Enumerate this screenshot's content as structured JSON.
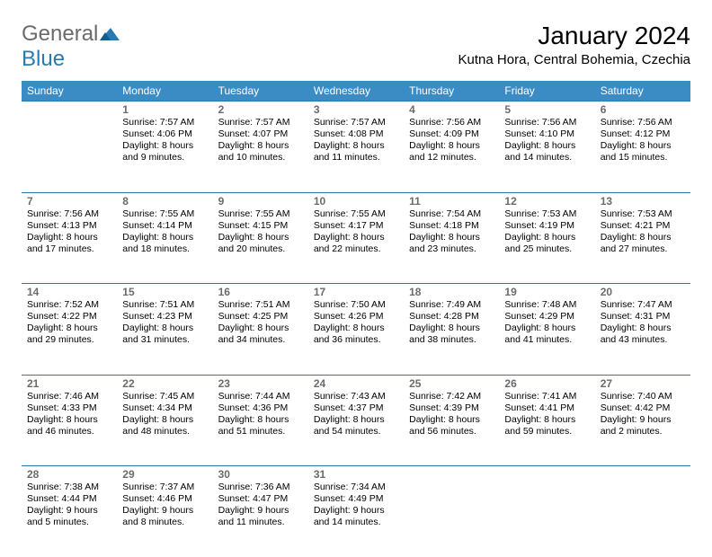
{
  "logo": {
    "word1": "General",
    "word2": "Blue"
  },
  "title": "January 2024",
  "location": "Kutna Hora, Central Bohemia, Czechia",
  "colors": {
    "header_bg": "#3b8bc5",
    "row_divider": "#2a7ab0",
    "daynum": "#6b6b6b",
    "logo_gray": "#6b6b6b",
    "logo_blue": "#2a7ab0",
    "text": "#000000",
    "bg": "#ffffff"
  },
  "weekdays": [
    "Sunday",
    "Monday",
    "Tuesday",
    "Wednesday",
    "Thursday",
    "Friday",
    "Saturday"
  ],
  "weeks": [
    {
      "days": [
        null,
        {
          "n": "1",
          "sunrise": "Sunrise: 7:57 AM",
          "sunset": "Sunset: 4:06 PM",
          "day1": "Daylight: 8 hours",
          "day2": "and 9 minutes."
        },
        {
          "n": "2",
          "sunrise": "Sunrise: 7:57 AM",
          "sunset": "Sunset: 4:07 PM",
          "day1": "Daylight: 8 hours",
          "day2": "and 10 minutes."
        },
        {
          "n": "3",
          "sunrise": "Sunrise: 7:57 AM",
          "sunset": "Sunset: 4:08 PM",
          "day1": "Daylight: 8 hours",
          "day2": "and 11 minutes."
        },
        {
          "n": "4",
          "sunrise": "Sunrise: 7:56 AM",
          "sunset": "Sunset: 4:09 PM",
          "day1": "Daylight: 8 hours",
          "day2": "and 12 minutes."
        },
        {
          "n": "5",
          "sunrise": "Sunrise: 7:56 AM",
          "sunset": "Sunset: 4:10 PM",
          "day1": "Daylight: 8 hours",
          "day2": "and 14 minutes."
        },
        {
          "n": "6",
          "sunrise": "Sunrise: 7:56 AM",
          "sunset": "Sunset: 4:12 PM",
          "day1": "Daylight: 8 hours",
          "day2": "and 15 minutes."
        }
      ]
    },
    {
      "days": [
        {
          "n": "7",
          "sunrise": "Sunrise: 7:56 AM",
          "sunset": "Sunset: 4:13 PM",
          "day1": "Daylight: 8 hours",
          "day2": "and 17 minutes."
        },
        {
          "n": "8",
          "sunrise": "Sunrise: 7:55 AM",
          "sunset": "Sunset: 4:14 PM",
          "day1": "Daylight: 8 hours",
          "day2": "and 18 minutes."
        },
        {
          "n": "9",
          "sunrise": "Sunrise: 7:55 AM",
          "sunset": "Sunset: 4:15 PM",
          "day1": "Daylight: 8 hours",
          "day2": "and 20 minutes."
        },
        {
          "n": "10",
          "sunrise": "Sunrise: 7:55 AM",
          "sunset": "Sunset: 4:17 PM",
          "day1": "Daylight: 8 hours",
          "day2": "and 22 minutes."
        },
        {
          "n": "11",
          "sunrise": "Sunrise: 7:54 AM",
          "sunset": "Sunset: 4:18 PM",
          "day1": "Daylight: 8 hours",
          "day2": "and 23 minutes."
        },
        {
          "n": "12",
          "sunrise": "Sunrise: 7:53 AM",
          "sunset": "Sunset: 4:19 PM",
          "day1": "Daylight: 8 hours",
          "day2": "and 25 minutes."
        },
        {
          "n": "13",
          "sunrise": "Sunrise: 7:53 AM",
          "sunset": "Sunset: 4:21 PM",
          "day1": "Daylight: 8 hours",
          "day2": "and 27 minutes."
        }
      ]
    },
    {
      "days": [
        {
          "n": "14",
          "sunrise": "Sunrise: 7:52 AM",
          "sunset": "Sunset: 4:22 PM",
          "day1": "Daylight: 8 hours",
          "day2": "and 29 minutes."
        },
        {
          "n": "15",
          "sunrise": "Sunrise: 7:51 AM",
          "sunset": "Sunset: 4:23 PM",
          "day1": "Daylight: 8 hours",
          "day2": "and 31 minutes."
        },
        {
          "n": "16",
          "sunrise": "Sunrise: 7:51 AM",
          "sunset": "Sunset: 4:25 PM",
          "day1": "Daylight: 8 hours",
          "day2": "and 34 minutes."
        },
        {
          "n": "17",
          "sunrise": "Sunrise: 7:50 AM",
          "sunset": "Sunset: 4:26 PM",
          "day1": "Daylight: 8 hours",
          "day2": "and 36 minutes."
        },
        {
          "n": "18",
          "sunrise": "Sunrise: 7:49 AM",
          "sunset": "Sunset: 4:28 PM",
          "day1": "Daylight: 8 hours",
          "day2": "and 38 minutes."
        },
        {
          "n": "19",
          "sunrise": "Sunrise: 7:48 AM",
          "sunset": "Sunset: 4:29 PM",
          "day1": "Daylight: 8 hours",
          "day2": "and 41 minutes."
        },
        {
          "n": "20",
          "sunrise": "Sunrise: 7:47 AM",
          "sunset": "Sunset: 4:31 PM",
          "day1": "Daylight: 8 hours",
          "day2": "and 43 minutes."
        }
      ]
    },
    {
      "days": [
        {
          "n": "21",
          "sunrise": "Sunrise: 7:46 AM",
          "sunset": "Sunset: 4:33 PM",
          "day1": "Daylight: 8 hours",
          "day2": "and 46 minutes."
        },
        {
          "n": "22",
          "sunrise": "Sunrise: 7:45 AM",
          "sunset": "Sunset: 4:34 PM",
          "day1": "Daylight: 8 hours",
          "day2": "and 48 minutes."
        },
        {
          "n": "23",
          "sunrise": "Sunrise: 7:44 AM",
          "sunset": "Sunset: 4:36 PM",
          "day1": "Daylight: 8 hours",
          "day2": "and 51 minutes."
        },
        {
          "n": "24",
          "sunrise": "Sunrise: 7:43 AM",
          "sunset": "Sunset: 4:37 PM",
          "day1": "Daylight: 8 hours",
          "day2": "and 54 minutes."
        },
        {
          "n": "25",
          "sunrise": "Sunrise: 7:42 AM",
          "sunset": "Sunset: 4:39 PM",
          "day1": "Daylight: 8 hours",
          "day2": "and 56 minutes."
        },
        {
          "n": "26",
          "sunrise": "Sunrise: 7:41 AM",
          "sunset": "Sunset: 4:41 PM",
          "day1": "Daylight: 8 hours",
          "day2": "and 59 minutes."
        },
        {
          "n": "27",
          "sunrise": "Sunrise: 7:40 AM",
          "sunset": "Sunset: 4:42 PM",
          "day1": "Daylight: 9 hours",
          "day2": "and 2 minutes."
        }
      ]
    },
    {
      "days": [
        {
          "n": "28",
          "sunrise": "Sunrise: 7:38 AM",
          "sunset": "Sunset: 4:44 PM",
          "day1": "Daylight: 9 hours",
          "day2": "and 5 minutes."
        },
        {
          "n": "29",
          "sunrise": "Sunrise: 7:37 AM",
          "sunset": "Sunset: 4:46 PM",
          "day1": "Daylight: 9 hours",
          "day2": "and 8 minutes."
        },
        {
          "n": "30",
          "sunrise": "Sunrise: 7:36 AM",
          "sunset": "Sunset: 4:47 PM",
          "day1": "Daylight: 9 hours",
          "day2": "and 11 minutes."
        },
        {
          "n": "31",
          "sunrise": "Sunrise: 7:34 AM",
          "sunset": "Sunset: 4:49 PM",
          "day1": "Daylight: 9 hours",
          "day2": "and 14 minutes."
        },
        null,
        null,
        null
      ]
    }
  ]
}
